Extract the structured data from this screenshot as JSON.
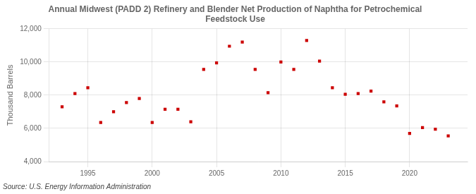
{
  "chart_data": {
    "type": "scatter",
    "title": "Annual Midwest (PADD 2) Refinery and Blender Net Production of Naphtha for Petrochemical\nFeedstock Use",
    "ylabel": "Thousand Barrels",
    "annotations": [
      "Source: U.S. Energy Information Administration"
    ],
    "x": [
      1993,
      1994,
      1995,
      1996,
      1997,
      1998,
      1999,
      2000,
      2001,
      2002,
      2003,
      2004,
      2005,
      2006,
      2007,
      2008,
      2009,
      2010,
      2011,
      2012,
      2013,
      2014,
      2015,
      2016,
      2017,
      2018,
      2019,
      2020,
      2021,
      2022,
      2023
    ],
    "values": [
      7300,
      8100,
      8450,
      6350,
      7000,
      7550,
      7800,
      6350,
      7150,
      7150,
      6400,
      9550,
      9950,
      10950,
      11200,
      9550,
      8150,
      10000,
      9550,
      11300,
      10050,
      8450,
      8050,
      8100,
      8250,
      7600,
      7350,
      5700,
      6050,
      5950,
      5550
    ],
    "color": "#cc0000",
    "marker": "square",
    "xlim": [
      1992,
      2024.5
    ],
    "xticks": [
      1995,
      2000,
      2005,
      2010,
      2015,
      2020
    ],
    "ylim": [
      4000,
      12000
    ],
    "yticks": [
      {
        "value": 4000,
        "label": "4,000"
      },
      {
        "value": 6000,
        "label": "6,000"
      },
      {
        "value": 8000,
        "label": "8,000"
      },
      {
        "value": 10000,
        "label": "10,000"
      },
      {
        "value": 12000,
        "label": "12,000"
      }
    ],
    "grid": true
  }
}
